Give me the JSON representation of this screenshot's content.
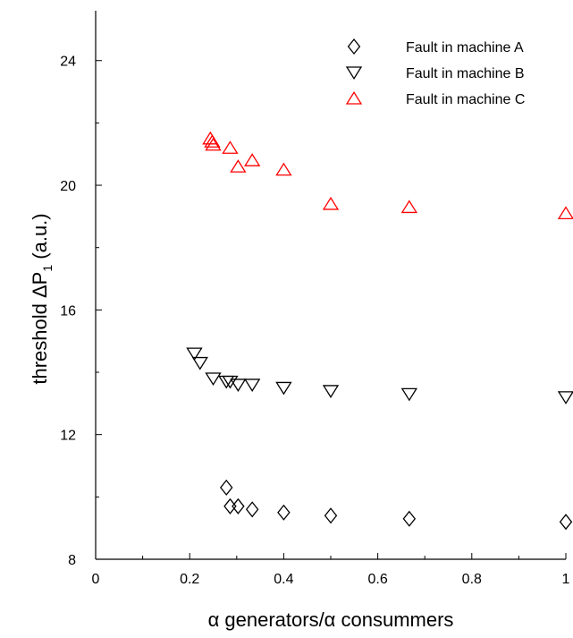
{
  "chart_data": {
    "type": "scatter",
    "xlabel": "α generators/α consummers",
    "ylabel_main": "threshold ΔP",
    "ylabel_sub": "1",
    "ylabel_tail": " (a.u.)",
    "xlim": [
      0,
      1
    ],
    "ylim": [
      8,
      25.6
    ],
    "xticks": [
      0,
      0.2,
      0.4,
      0.6,
      0.8,
      1
    ],
    "xtick_labels": [
      "0",
      "0.2",
      "0.4",
      "0.6",
      "0.8",
      "1"
    ],
    "yticks": [
      8,
      12,
      16,
      20,
      24
    ],
    "ytick_labels": [
      "8",
      "12",
      "16",
      "20",
      "24"
    ],
    "grid": false,
    "legend_position": "top-right",
    "series": [
      {
        "name": "Fault in machine A",
        "marker": "diamond",
        "color": "#000000",
        "points": [
          [
            0.278,
            10.3
          ],
          [
            0.286,
            9.7
          ],
          [
            0.303,
            9.7
          ],
          [
            0.333,
            9.6
          ],
          [
            0.4,
            9.5
          ],
          [
            0.5,
            9.4
          ],
          [
            0.667,
            9.3
          ],
          [
            1.0,
            9.2
          ]
        ]
      },
      {
        "name": "Fault in machine B",
        "marker": "triangle-down",
        "color": "#000000",
        "points": [
          [
            0.21,
            14.6
          ],
          [
            0.222,
            14.3
          ],
          [
            0.25,
            13.8
          ],
          [
            0.278,
            13.7
          ],
          [
            0.286,
            13.7
          ],
          [
            0.303,
            13.6
          ],
          [
            0.333,
            13.6
          ],
          [
            0.4,
            13.5
          ],
          [
            0.5,
            13.4
          ],
          [
            0.667,
            13.3
          ],
          [
            1.0,
            13.2
          ]
        ]
      },
      {
        "name": "Fault in machine C",
        "marker": "triangle-up",
        "color": "#ff0000",
        "points": [
          [
            0.244,
            21.5
          ],
          [
            0.248,
            21.4
          ],
          [
            0.25,
            21.3
          ],
          [
            0.286,
            21.2
          ],
          [
            0.303,
            20.6
          ],
          [
            0.333,
            20.8
          ],
          [
            0.4,
            20.5
          ],
          [
            0.5,
            19.4
          ],
          [
            0.667,
            19.3
          ],
          [
            1.0,
            19.1
          ]
        ]
      }
    ]
  }
}
